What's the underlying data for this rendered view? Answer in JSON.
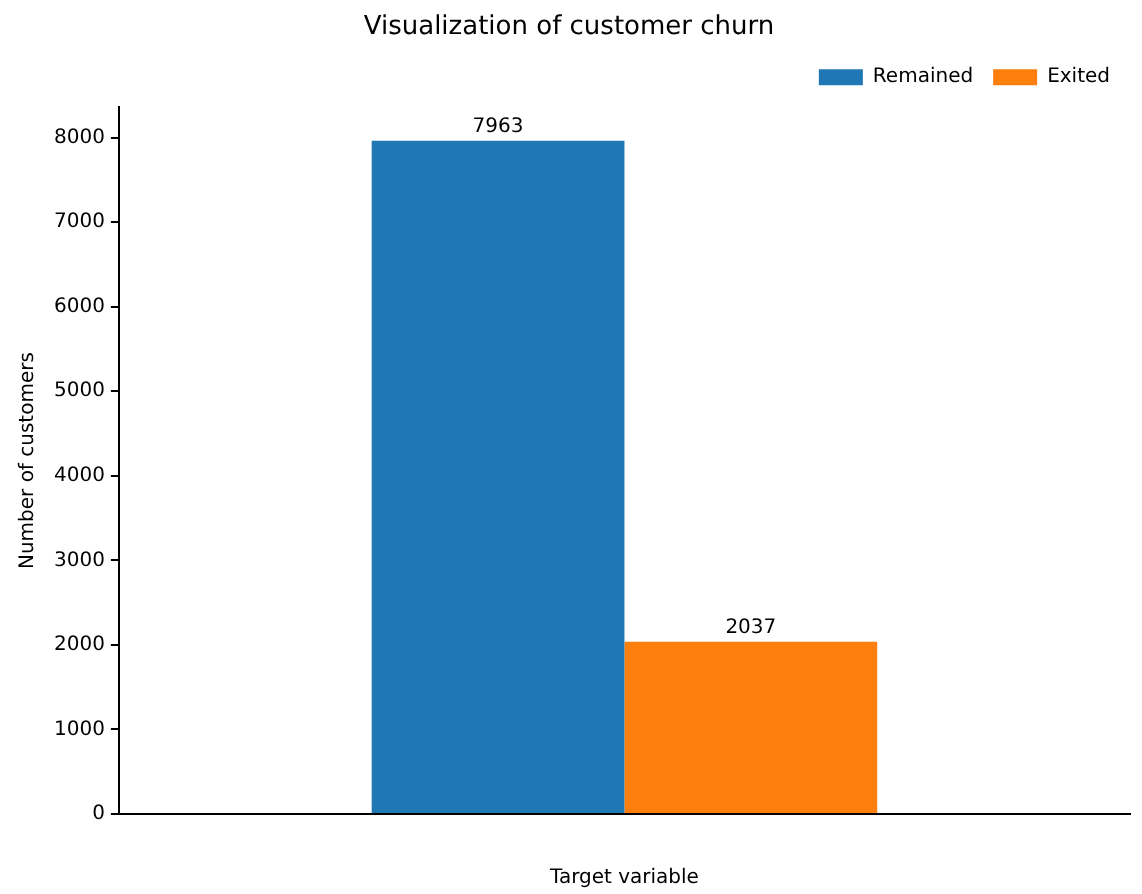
{
  "chart_data": {
    "type": "bar",
    "title": "Visualization of customer churn",
    "xlabel": "Target variable",
    "ylabel": "Number of customers",
    "categories": [
      null
    ],
    "series": [
      {
        "name": "Remained",
        "color": "#1f77b4",
        "values": [
          7963
        ]
      },
      {
        "name": "Exited",
        "color": "#ff7f0e",
        "values": [
          2037
        ]
      }
    ],
    "ylim": [
      0,
      8360
    ],
    "yticks": [
      0,
      1000,
      2000,
      3000,
      4000,
      5000,
      6000,
      7000,
      8000
    ],
    "grid": false,
    "legend": "top right",
    "data_labels": true
  }
}
